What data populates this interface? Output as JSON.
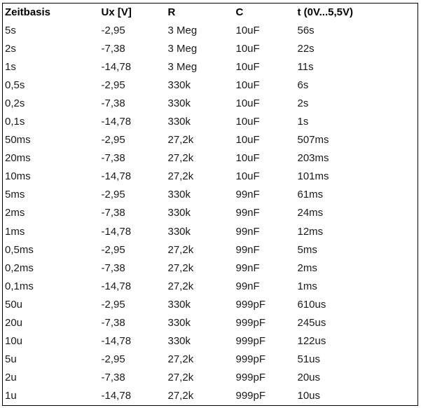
{
  "page": {
    "background_color": "#ffffff",
    "text_color": "#1a1a1a",
    "border_color": "#000000"
  },
  "table": {
    "header": [
      "Zeitbasis",
      "Ux [V]",
      "R",
      "C",
      "t (0V...5,5V)"
    ],
    "rows": [
      [
        "5s",
        "-2,95",
        "3 Meg",
        "10uF",
        "56s"
      ],
      [
        "2s",
        "-7,38",
        "3 Meg",
        "10uF",
        "22s"
      ],
      [
        "1s",
        "-14,78",
        "3 Meg",
        "10uF",
        "11s"
      ],
      [
        "0,5s",
        "-2,95",
        "330k",
        "10uF",
        "6s"
      ],
      [
        "0,2s",
        "-7,38",
        "330k",
        "10uF",
        "2s"
      ],
      [
        "0,1s",
        "-14,78",
        "330k",
        "10uF",
        "1s"
      ],
      [
        "50ms",
        "-2,95",
        "27,2k",
        "10uF",
        "507ms"
      ],
      [
        "20ms",
        "-7,38",
        "27,2k",
        "10uF",
        "203ms"
      ],
      [
        "10ms",
        "-14,78",
        "27,2k",
        "10uF",
        "101ms"
      ],
      [
        "5ms",
        "-2,95",
        "330k",
        "99nF",
        "61ms"
      ],
      [
        "2ms",
        "-7,38",
        "330k",
        "99nF",
        "24ms"
      ],
      [
        "1ms",
        "-14,78",
        "330k",
        "99nF",
        "12ms"
      ],
      [
        "0,5ms",
        "-2,95",
        "27,2k",
        "99nF",
        "5ms"
      ],
      [
        "0,2ms",
        "-7,38",
        "27,2k",
        "99nF",
        "2ms"
      ],
      [
        "0,1ms",
        "-14,78",
        "27,2k",
        "99nF",
        "1ms"
      ],
      [
        "50u",
        "-2,95",
        "330k",
        "999pF",
        "610us"
      ],
      [
        "20u",
        "-7,38",
        "330k",
        "999pF",
        "245us"
      ],
      [
        "10u",
        "-14,78",
        "330k",
        "999pF",
        "122us"
      ],
      [
        "5u",
        "-2,95",
        "27,2k",
        "999pF",
        "51us"
      ],
      [
        "2u",
        "-7,38",
        "27,2k",
        "999pF",
        "20us"
      ],
      [
        "1u",
        "-14,78",
        "27,2k",
        "999pF",
        "10us"
      ]
    ]
  }
}
